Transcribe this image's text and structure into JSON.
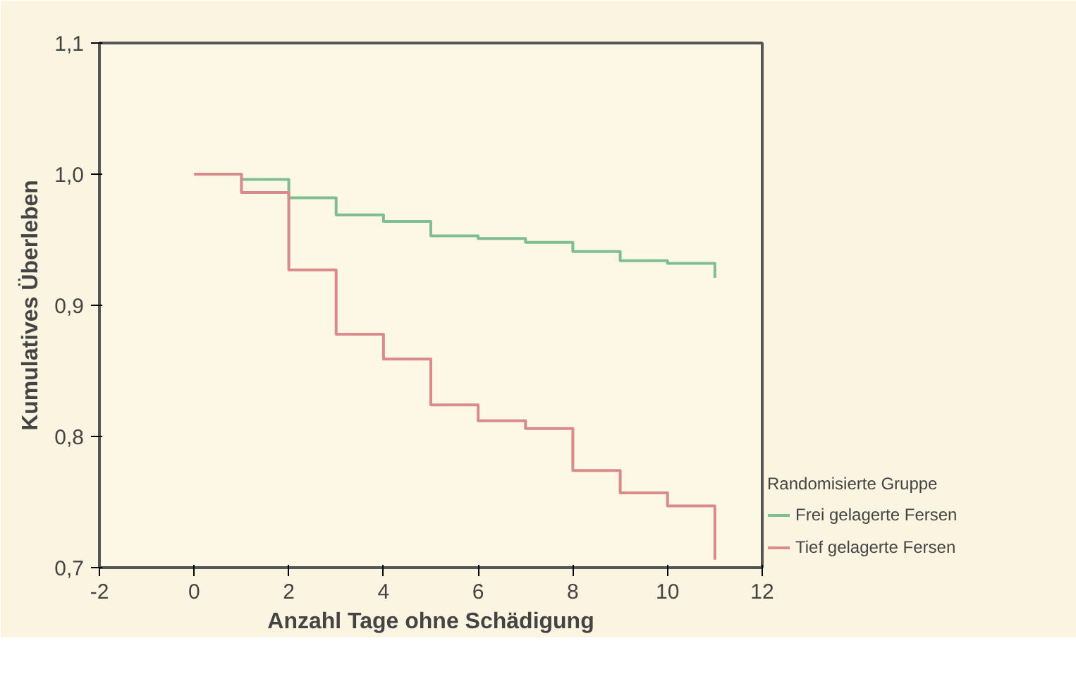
{
  "chart_data": {
    "type": "step",
    "xlabel": "Anzahl Tage ohne Schädigung",
    "ylabel": "Kumulatives Überleben",
    "legend_title": "Randomisierte Gruppe",
    "legend": "right",
    "grid": false,
    "x": [
      0,
      1,
      2,
      3,
      4,
      5,
      6,
      7,
      8,
      9,
      10,
      11,
      11
    ],
    "series": [
      {
        "name": "Frei gelagerte Fersen",
        "color": "#7fbf8f",
        "values": [
          null,
          0.996,
          0.982,
          0.969,
          0.964,
          0.953,
          0.951,
          0.948,
          0.941,
          0.934,
          0.932,
          0.932,
          0.921
        ]
      },
      {
        "name": "Tief gelagerte Fersen",
        "color": "#d98a8a",
        "values": [
          1.0,
          0.986,
          0.927,
          0.878,
          0.859,
          0.824,
          0.812,
          0.806,
          0.774,
          0.757,
          0.747,
          0.747,
          0.706
        ]
      }
    ],
    "xlim": [
      -2,
      12
    ],
    "xticks": [
      {
        "value": -2,
        "label": "-2"
      },
      0,
      2,
      4,
      6,
      8,
      10,
      12
    ],
    "ylim": [
      0.7,
      1.1
    ],
    "yticks": [
      {
        "value": 0.7,
        "label": "0,7"
      },
      {
        "value": 0.8,
        "label": "0,8"
      },
      {
        "value": 0.9,
        "label": "0,9"
      },
      {
        "value": 1.0,
        "label": "1,0"
      },
      {
        "value": 1.1,
        "label": "1,1"
      }
    ]
  }
}
